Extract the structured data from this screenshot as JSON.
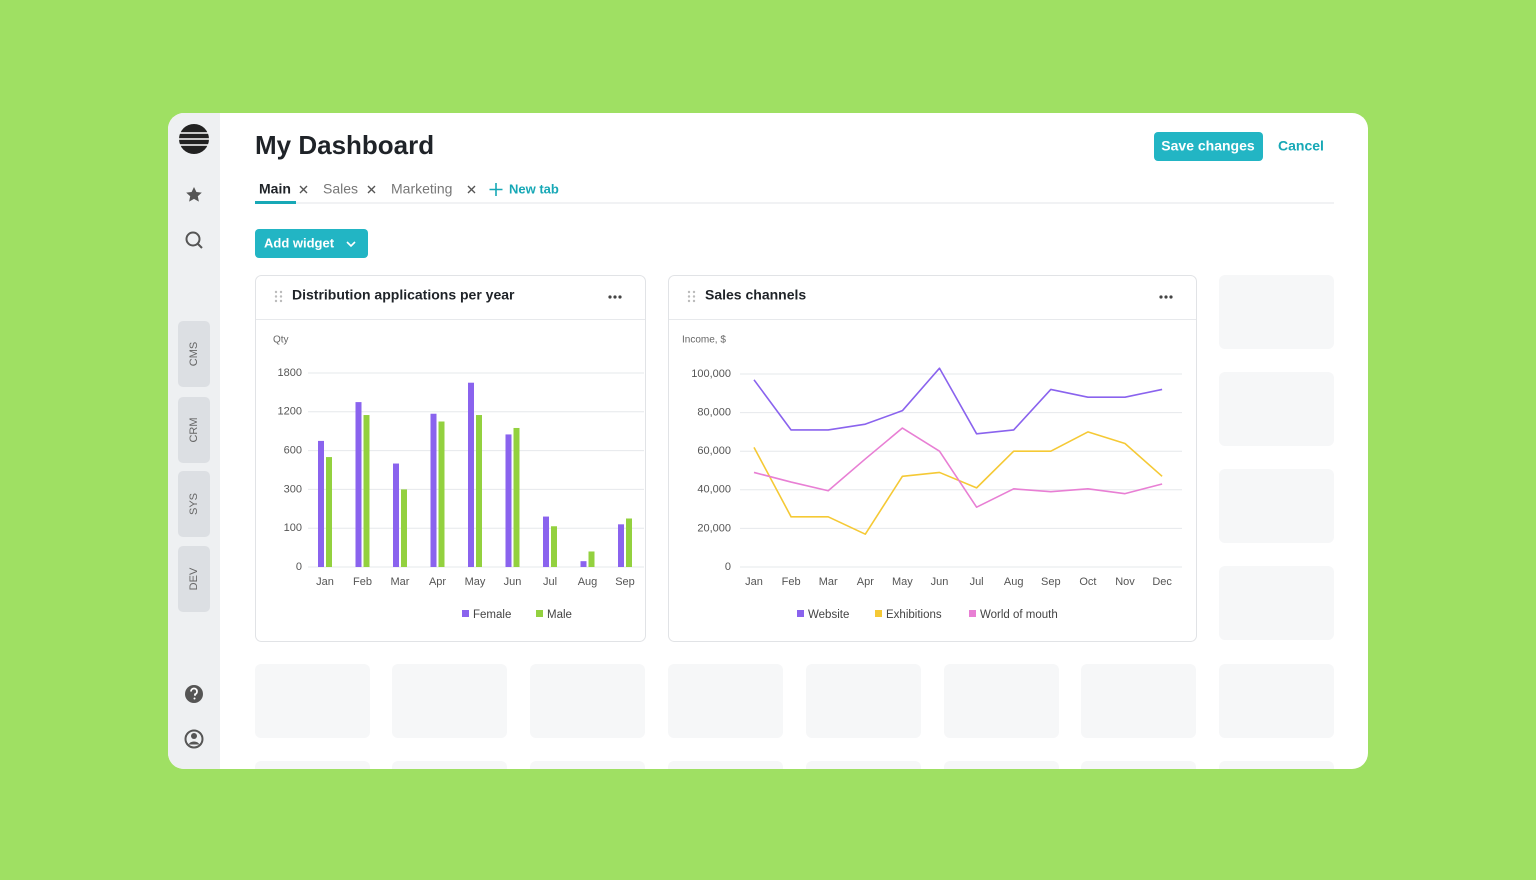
{
  "header": {
    "title": "My Dashboard",
    "save": "Save changes",
    "cancel": "Cancel"
  },
  "tabs": [
    "Main",
    "Sales",
    "Marketing"
  ],
  "new_tab": "New tab",
  "add_widget": "Add widget",
  "sidebar": [
    "CMS",
    "CRM",
    "SYS",
    "DEV"
  ],
  "chart_data": [
    {
      "type": "bar",
      "title": "Distribution applications per year",
      "y_label": "Qty",
      "categories": [
        "Jan",
        "Feb",
        "Mar",
        "Apr",
        "May",
        "Jun",
        "Jul",
        "Aug",
        "Sep"
      ],
      "series": [
        {
          "name": "Female",
          "color": "#8a63ee",
          "values": [
            750,
            1350,
            500,
            1170,
            1650,
            850,
            160,
            15,
            120
          ]
        },
        {
          "name": "Male",
          "color": "#93d13f",
          "values": [
            550,
            1150,
            300,
            1050,
            1150,
            950,
            110,
            40,
            150
          ]
        }
      ],
      "ylim": [
        0,
        1800
      ],
      "yticks": [
        0,
        100,
        300,
        600,
        1200,
        1800
      ],
      "grid": true
    },
    {
      "type": "line",
      "title": "Sales channels",
      "y_label": "Income, $",
      "categories": [
        "Jan",
        "Feb",
        "Mar",
        "Apr",
        "May",
        "Jun",
        "Jul",
        "Aug",
        "Sep",
        "Oct",
        "Nov",
        "Dec"
      ],
      "series": [
        {
          "name": "Website",
          "color": "#8a63ee",
          "values": [
            97000,
            71000,
            71000,
            74000,
            81000,
            103000,
            69000,
            71000,
            92000,
            88000,
            88000,
            92000
          ]
        },
        {
          "name": "Exhibitions",
          "color": "#f5c935",
          "values": [
            62000,
            26000,
            26000,
            17000,
            47000,
            49000,
            41000,
            60000,
            60000,
            70000,
            64000,
            47000
          ]
        },
        {
          "name": "World of mouth",
          "color": "#e87fd4",
          "values": [
            49000,
            44000,
            39500,
            56000,
            72000,
            60000,
            31000,
            40500,
            39000,
            40500,
            38000,
            43000
          ]
        }
      ],
      "ylim": [
        0,
        105000
      ],
      "yticks": [
        0,
        {
          "value": 20000,
          "label": "20,000"
        },
        {
          "value": 40000,
          "label": "40,000"
        },
        {
          "value": 60000,
          "label": "60,000"
        },
        {
          "value": 80000,
          "label": "80,000"
        },
        {
          "value": 100000,
          "label": "100,000"
        }
      ],
      "grid": true
    }
  ]
}
